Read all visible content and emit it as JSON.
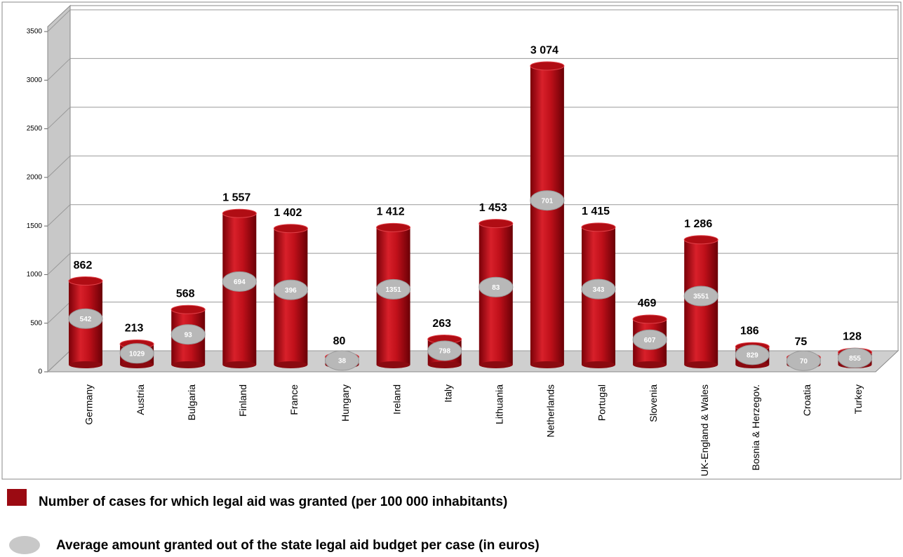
{
  "chart_data": {
    "type": "bar",
    "categories": [
      "Germany",
      "Austria",
      "Bulgaria",
      "Finland",
      "France",
      "Hungary",
      "Ireland",
      "Italy",
      "Lithuania",
      "Netherlands",
      "Portugal",
      "Slovenia",
      "UK-England & Wales",
      "Bosnia & Herzegov.",
      "Croatia",
      "Turkey"
    ],
    "series": [
      {
        "name": "Number of cases for which legal aid was granted (per 100 000 inhabitants)",
        "color": "#b00d14",
        "values": [
          862,
          213,
          568,
          1557,
          1402,
          80,
          1412,
          263,
          1453,
          3074,
          1415,
          469,
          1286,
          186,
          75,
          128
        ],
        "value_labels": [
          "862",
          "213",
          "568",
          "1 557",
          "1 402",
          "80",
          "1 412",
          "263",
          "1 453",
          "3 074",
          "1 415",
          "469",
          "1 286",
          "186",
          "75",
          "128"
        ]
      },
      {
        "name": "Average amount granted out of the state legal aid budget per case (in euros)",
        "color": "#b8b8b8",
        "values": [
          542,
          1029,
          93,
          694,
          396,
          38,
          1351,
          798,
          83,
          701,
          343,
          607,
          3551,
          829,
          70,
          855
        ]
      }
    ],
    "ylim": [
      0,
      3500
    ],
    "yticks": [
      0,
      500,
      1000,
      1500,
      2000,
      2500,
      3000,
      3500
    ],
    "grid": true
  }
}
